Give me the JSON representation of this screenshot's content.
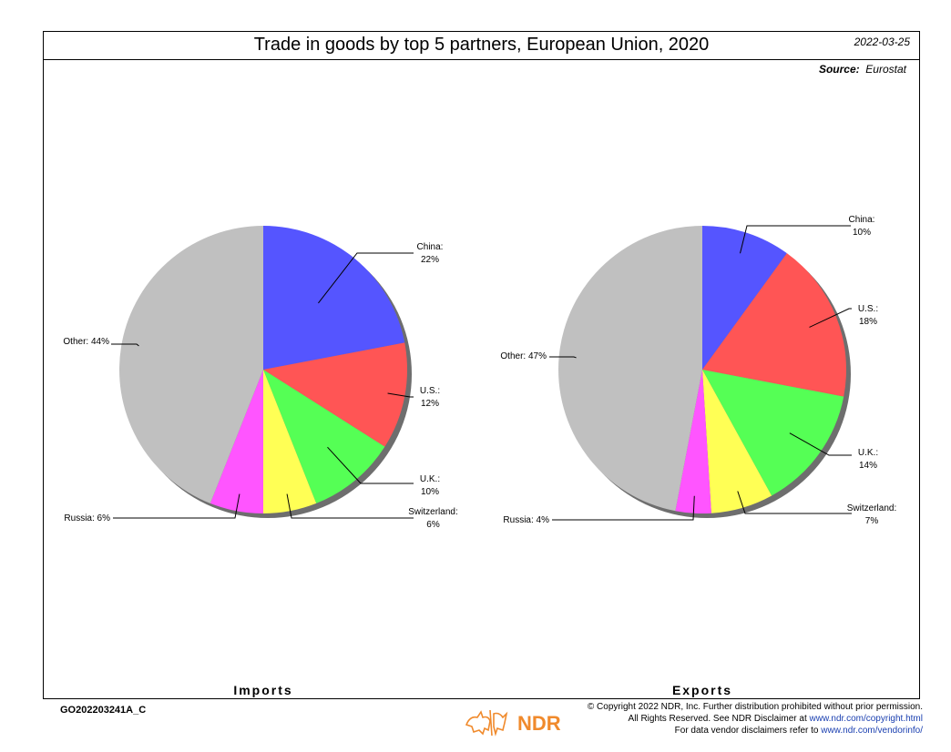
{
  "header": {
    "title": "Trade in goods by top 5 partners, European Union, 2020",
    "date": "2022-03-25",
    "source_label": "Source:",
    "source_value": "Eurostat"
  },
  "chart_data": [
    {
      "type": "pie",
      "panel_label": "Imports",
      "slices": [
        {
          "label": "China",
          "value": 22,
          "value_text": "22%",
          "color": "#5555ff"
        },
        {
          "label": "U.S.",
          "value": 12,
          "value_text": "12%",
          "color": "#ff5555"
        },
        {
          "label": "U.K.",
          "value": 10,
          "value_text": "10%",
          "color": "#55ff55"
        },
        {
          "label": "Switzerland",
          "value": 6,
          "value_text": "6%",
          "color": "#ffff55"
        },
        {
          "label": "Russia",
          "value": 6,
          "value_text": "6%",
          "color": "#ff55ff"
        },
        {
          "label": "Other",
          "value": 44,
          "value_text": "44%",
          "color": "#c0c0c0"
        }
      ]
    },
    {
      "type": "pie",
      "panel_label": "Exports",
      "slices": [
        {
          "label": "China",
          "value": 10,
          "value_text": "10%",
          "color": "#5555ff"
        },
        {
          "label": "U.S.",
          "value": 18,
          "value_text": "18%",
          "color": "#ff5555"
        },
        {
          "label": "U.K.",
          "value": 14,
          "value_text": "14%",
          "color": "#55ff55"
        },
        {
          "label": "Switzerland",
          "value": 7,
          "value_text": "7%",
          "color": "#ffff55"
        },
        {
          "label": "Russia",
          "value": 4,
          "value_text": "4%",
          "color": "#ff55ff"
        },
        {
          "label": "Other",
          "value": 47,
          "value_text": "47%",
          "color": "#c0c0c0"
        }
      ]
    }
  ],
  "footer": {
    "code": "GO202203241A_C",
    "logo_text": "NDR",
    "copyright_line1": "© Copyright 2022 NDR, Inc. Further distribution prohibited without prior permission.",
    "copyright_line2_prefix": "All Rights Reserved. See NDR Disclaimer at ",
    "copyright_line2_link": "www.ndr.com/copyright.html",
    "copyright_line3_prefix": "For data vendor disclaimers refer to ",
    "copyright_line3_link": "www.ndr.com/vendorinfo/"
  }
}
